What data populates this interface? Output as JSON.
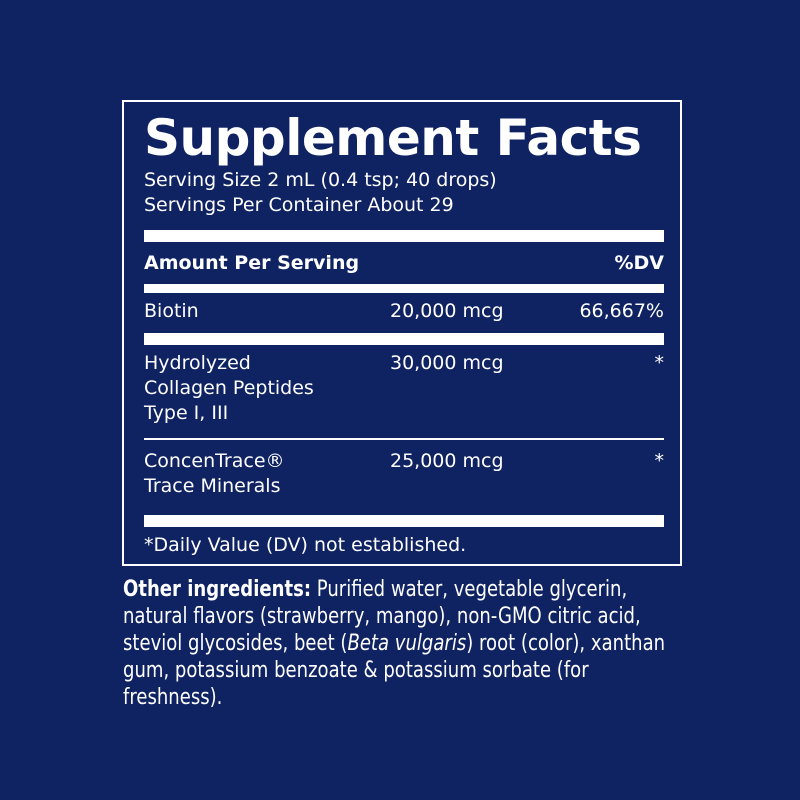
{
  "title": "Supplement Facts",
  "serving_size": "Serving Size 2 mL (0.4 tsp; 40 drops)",
  "servings_per_container": "Servings Per Container About 29",
  "header": {
    "amount": "Amount Per Serving",
    "dv": "%DV"
  },
  "rows": [
    {
      "name": "Biotin",
      "amount": "20,000 mcg",
      "dv": "66,667%"
    },
    {
      "name_lines": [
        "Hydrolyzed",
        "Collagen Peptides",
        "Type I, III"
      ],
      "amount": "30,000 mcg",
      "dv": "*"
    },
    {
      "name_lines": [
        "ConcenTrace®",
        "Trace Minerals"
      ],
      "amount": "25,000 mcg",
      "dv": "*"
    }
  ],
  "footnote": "*Daily Value (DV) not established.",
  "other_ingredients": {
    "label": "Other ingredients:",
    "text_before_italic": " Purified water, vegetable glycerin, natural flavors (strawberry, mango), non-GMO citric acid, steviol glycosides, beet (",
    "italic": "Beta vulgaris",
    "text_after_italic": ") root (color), xanthan gum, potassium benzoate & potassium sorbate (for freshness)."
  },
  "colors": {
    "background": "#0f2262",
    "text": "#ffffff"
  }
}
